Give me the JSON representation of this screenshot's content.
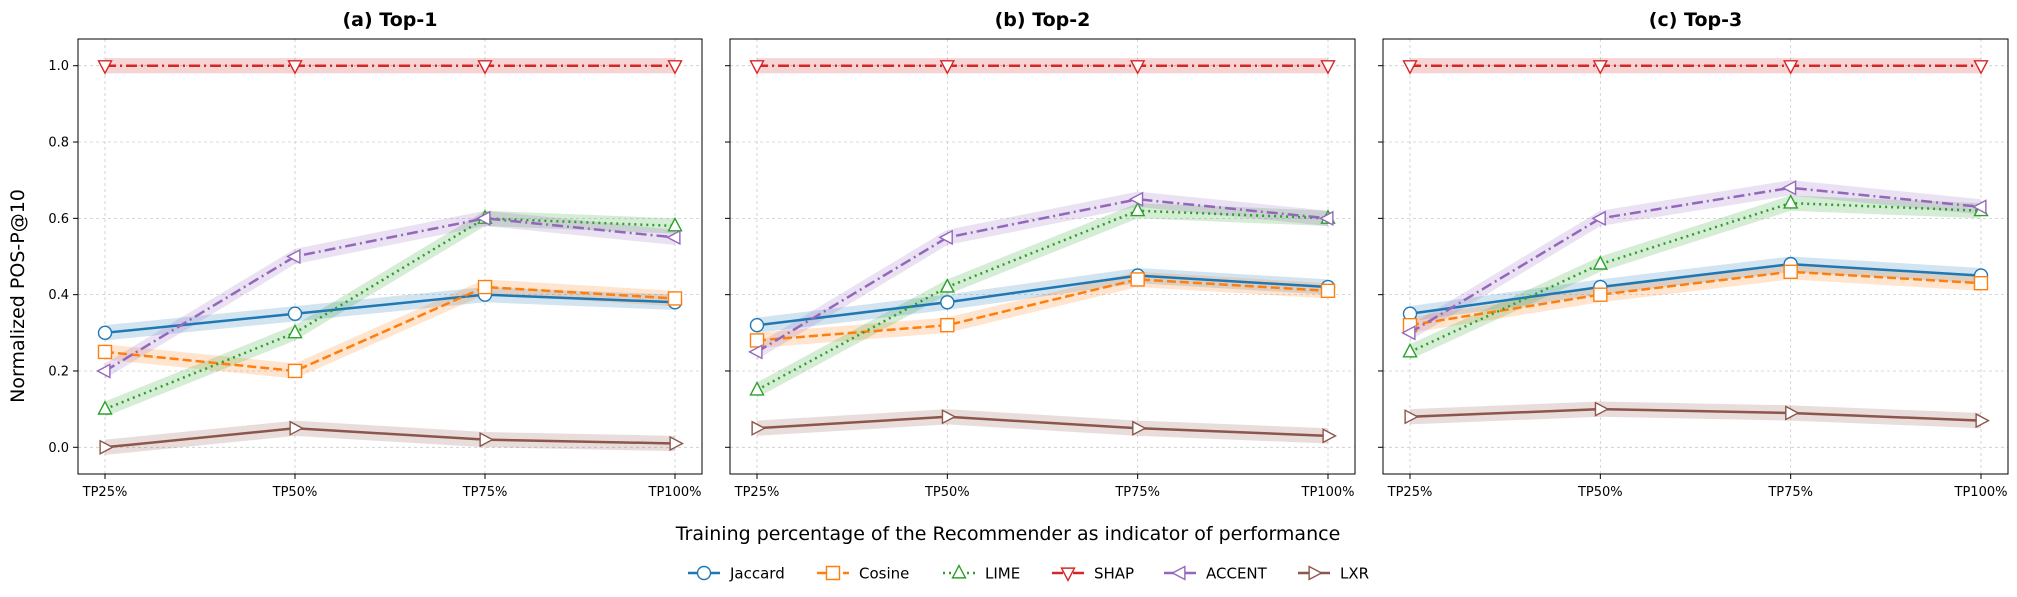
{
  "figure": {
    "ylabel": "Normalized POS-P@10",
    "xlabel": "Training percentage of the Recommender as indicator of performance"
  },
  "series_styles": [
    {
      "name": "Jaccard",
      "color": "#1f77b4",
      "dash": "solid",
      "marker": "circle"
    },
    {
      "name": "Cosine",
      "color": "#ff7f0e",
      "dash": "dashed",
      "marker": "square"
    },
    {
      "name": "LIME",
      "color": "#2ca02c",
      "dash": "dotted",
      "marker": "triangle-up"
    },
    {
      "name": "SHAP",
      "color": "#d62728",
      "dash": "dashdot",
      "marker": "triangle-down"
    },
    {
      "name": "ACCENT",
      "color": "#9467bd",
      "dash": "dashdot",
      "marker": "triangle-left"
    },
    {
      "name": "LXR",
      "color": "#8c564b",
      "dash": "solid",
      "marker": "triangle-right"
    }
  ],
  "legend": {
    "placement": "bottom-center",
    "columns": 6
  },
  "chart_data": [
    {
      "type": "line",
      "title": "(a) Top-1",
      "categories": [
        "TP25%",
        "TP50%",
        "TP75%",
        "TP100%"
      ],
      "ylim": [
        -0.07,
        1.07
      ],
      "yticks": [
        "0.0",
        "0.2",
        "0.4",
        "0.6",
        "0.8",
        "1.0"
      ],
      "grid": true,
      "series": [
        {
          "name": "Jaccard",
          "values": [
            0.3,
            0.35,
            0.4,
            0.38
          ]
        },
        {
          "name": "Cosine",
          "values": [
            0.25,
            0.2,
            0.42,
            0.39
          ]
        },
        {
          "name": "LIME",
          "values": [
            0.1,
            0.3,
            0.6,
            0.58
          ]
        },
        {
          "name": "SHAP",
          "values": [
            1.0,
            1.0,
            1.0,
            1.0
          ]
        },
        {
          "name": "ACCENT",
          "values": [
            0.2,
            0.5,
            0.6,
            0.55
          ]
        },
        {
          "name": "LXR",
          "values": [
            0.0,
            0.05,
            0.02,
            0.01
          ]
        }
      ]
    },
    {
      "type": "line",
      "title": "(b) Top-2",
      "categories": [
        "TP25%",
        "TP50%",
        "TP75%",
        "TP100%"
      ],
      "ylim": [
        -0.07,
        1.07
      ],
      "grid": true,
      "series": [
        {
          "name": "Jaccard",
          "values": [
            0.32,
            0.38,
            0.45,
            0.42
          ]
        },
        {
          "name": "Cosine",
          "values": [
            0.28,
            0.32,
            0.44,
            0.41
          ]
        },
        {
          "name": "LIME",
          "values": [
            0.15,
            0.42,
            0.62,
            0.6
          ]
        },
        {
          "name": "SHAP",
          "values": [
            1.0,
            1.0,
            1.0,
            1.0
          ]
        },
        {
          "name": "ACCENT",
          "values": [
            0.25,
            0.55,
            0.65,
            0.6
          ]
        },
        {
          "name": "LXR",
          "values": [
            0.05,
            0.08,
            0.05,
            0.03
          ]
        }
      ]
    },
    {
      "type": "line",
      "title": "(c) Top-3",
      "categories": [
        "TP25%",
        "TP50%",
        "TP75%",
        "TP100%"
      ],
      "ylim": [
        -0.07,
        1.07
      ],
      "grid": true,
      "series": [
        {
          "name": "Jaccard",
          "values": [
            0.35,
            0.42,
            0.48,
            0.45
          ]
        },
        {
          "name": "Cosine",
          "values": [
            0.32,
            0.4,
            0.46,
            0.43
          ]
        },
        {
          "name": "LIME",
          "values": [
            0.25,
            0.48,
            0.64,
            0.62
          ]
        },
        {
          "name": "SHAP",
          "values": [
            1.0,
            1.0,
            1.0,
            1.0
          ]
        },
        {
          "name": "ACCENT",
          "values": [
            0.3,
            0.6,
            0.68,
            0.63
          ]
        },
        {
          "name": "LXR",
          "values": [
            0.08,
            0.1,
            0.09,
            0.07
          ]
        }
      ]
    }
  ]
}
